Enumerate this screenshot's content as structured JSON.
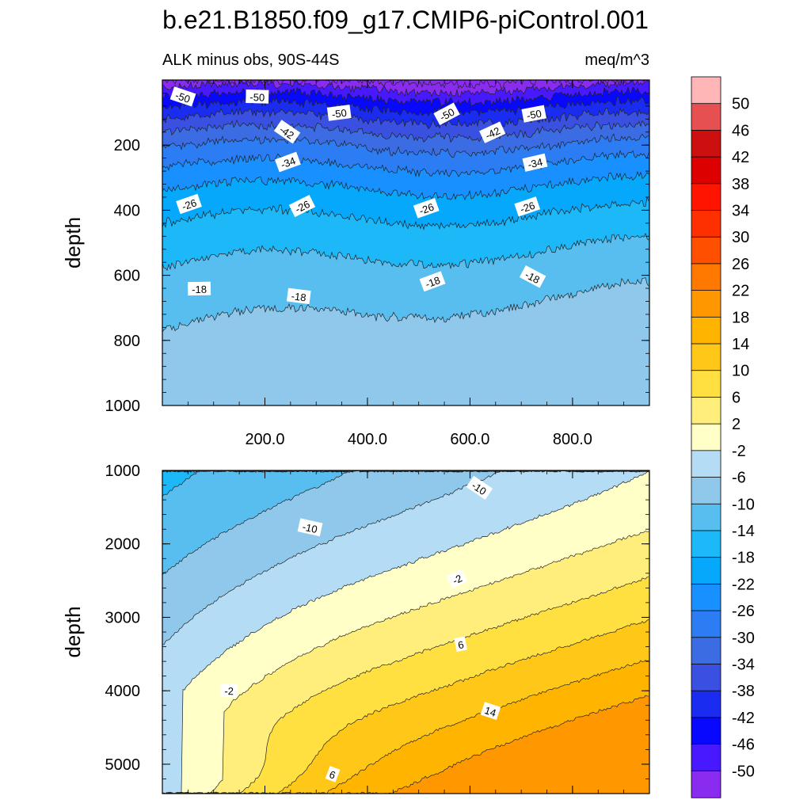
{
  "chart_data": {
    "type": "contour",
    "title": "b.e21.B1850.f09_g17.CMIP6-piControl.001",
    "subtitle_left": "ALK minus obs, 90S-44S",
    "subtitle_right": "meq/m^3",
    "xlim": [
      0,
      950
    ],
    "x_ticks": [
      "200.0",
      "400.0",
      "600.0",
      "800.0"
    ],
    "x_tick_values": [
      200,
      400,
      600,
      800
    ],
    "colorbar": {
      "labels": [
        "50",
        "46",
        "42",
        "38",
        "34",
        "30",
        "26",
        "22",
        "18",
        "14",
        "10",
        "6",
        "2",
        "-2",
        "-6",
        "-10",
        "-14",
        "-18",
        "-22",
        "-26",
        "-30",
        "-34",
        "-38",
        "-42",
        "-46",
        "-50"
      ],
      "colors": [
        "#ffb6b6",
        "#e65050",
        "#cc1010",
        "#dd0000",
        "#ff1400",
        "#ff3000",
        "#ff5000",
        "#ff7800",
        "#ff9800",
        "#ffb400",
        "#ffc818",
        "#ffe040",
        "#ffee7c",
        "#ffffc8",
        "#b4dcf4",
        "#90c8ec",
        "#58bef0",
        "#1cb8f8",
        "#06a8fc",
        "#1890ff",
        "#2c7cf4",
        "#3c6ce4",
        "#3a50e0",
        "#1a2cf0",
        "#0808ff",
        "#4818ff",
        "#8a2cf0"
      ]
    },
    "panels": [
      {
        "name": "upper",
        "ylabel": "depth",
        "ylim": [
          0,
          1000
        ],
        "y_ticks": [
          "200",
          "400",
          "600",
          "800",
          "1000"
        ],
        "y_tick_values": [
          200,
          400,
          600,
          800,
          1000
        ],
        "contour_labels": [
          {
            "text": "-50",
            "x": 40,
            "y": 52
          },
          {
            "text": "-50",
            "x": 185,
            "y": 52
          },
          {
            "text": "-50",
            "x": 345,
            "y": 102
          },
          {
            "text": "-50",
            "x": 555,
            "y": 105
          },
          {
            "text": "-50",
            "x": 725,
            "y": 105
          },
          {
            "text": "-42",
            "x": 243,
            "y": 160
          },
          {
            "text": "-42",
            "x": 644,
            "y": 162
          },
          {
            "text": "-34",
            "x": 245,
            "y": 253
          },
          {
            "text": "-34",
            "x": 727,
            "y": 255
          },
          {
            "text": "-26",
            "x": 52,
            "y": 382
          },
          {
            "text": "-26",
            "x": 273,
            "y": 388
          },
          {
            "text": "-26",
            "x": 515,
            "y": 395
          },
          {
            "text": "-26",
            "x": 712,
            "y": 390
          },
          {
            "text": "-18",
            "x": 72,
            "y": 642
          },
          {
            "text": "-18",
            "x": 266,
            "y": 665
          },
          {
            "text": "-18",
            "x": 527,
            "y": 620
          },
          {
            "text": "-18",
            "x": 722,
            "y": 605
          }
        ]
      },
      {
        "name": "lower",
        "ylabel": "depth",
        "ylim": [
          1000,
          5400
        ],
        "y_ticks": [
          "1000",
          "2000",
          "3000",
          "4000",
          "5000"
        ],
        "y_tick_values": [
          1000,
          2000,
          3000,
          4000,
          5000
        ],
        "contour_labels": [
          {
            "text": "-10",
            "x": 618,
            "y": 1240
          },
          {
            "text": "-10",
            "x": 288,
            "y": 1780
          },
          {
            "text": "-2",
            "x": 575,
            "y": 2480
          },
          {
            "text": "6",
            "x": 582,
            "y": 3370
          },
          {
            "text": "-2",
            "x": 130,
            "y": 4000
          },
          {
            "text": "14",
            "x": 640,
            "y": 4280
          },
          {
            "text": "6",
            "x": 332,
            "y": 5140
          }
        ]
      }
    ]
  }
}
